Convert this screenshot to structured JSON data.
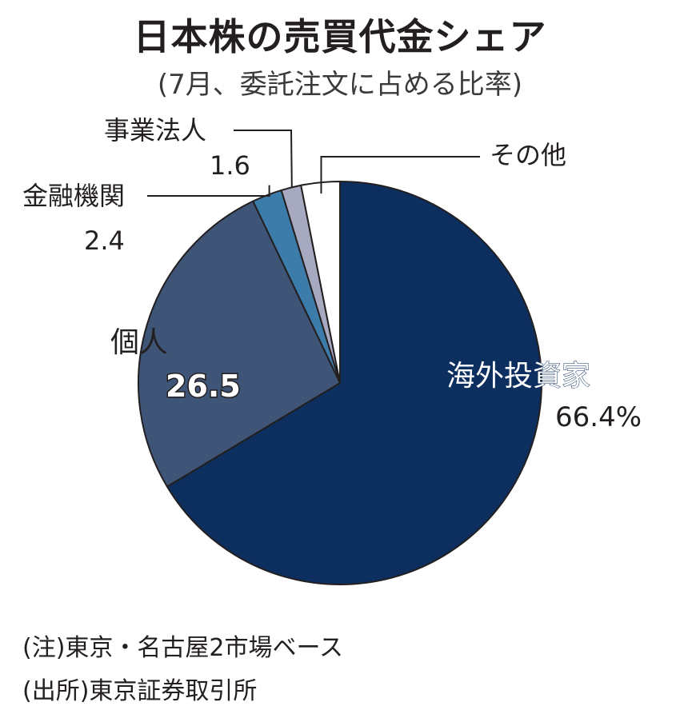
{
  "title": "日本株の売買代金シェア",
  "subtitle": "(7月、委託注文に占める比率)",
  "chart_data": {
    "type": "pie",
    "unit": "%",
    "slices": [
      {
        "name": "海外投資家",
        "value": 66.4,
        "label": "66.4%",
        "color": "#0c2f5f"
      },
      {
        "name": "個人",
        "value": 26.5,
        "label": "26.5",
        "color": "#3e5578"
      },
      {
        "name": "金融機関",
        "value": 2.4,
        "label": "2.4",
        "color": "#3c7cab"
      },
      {
        "name": "事業法人",
        "value": 1.6,
        "label": "1.6",
        "color": "#a6a9bf"
      },
      {
        "name": "その他",
        "value": 3.1,
        "label": "",
        "color": "#ffffff"
      }
    ]
  },
  "notes": [
    "(注)東京・名古屋2市場ベース",
    "(出所)東京証券取引所"
  ]
}
